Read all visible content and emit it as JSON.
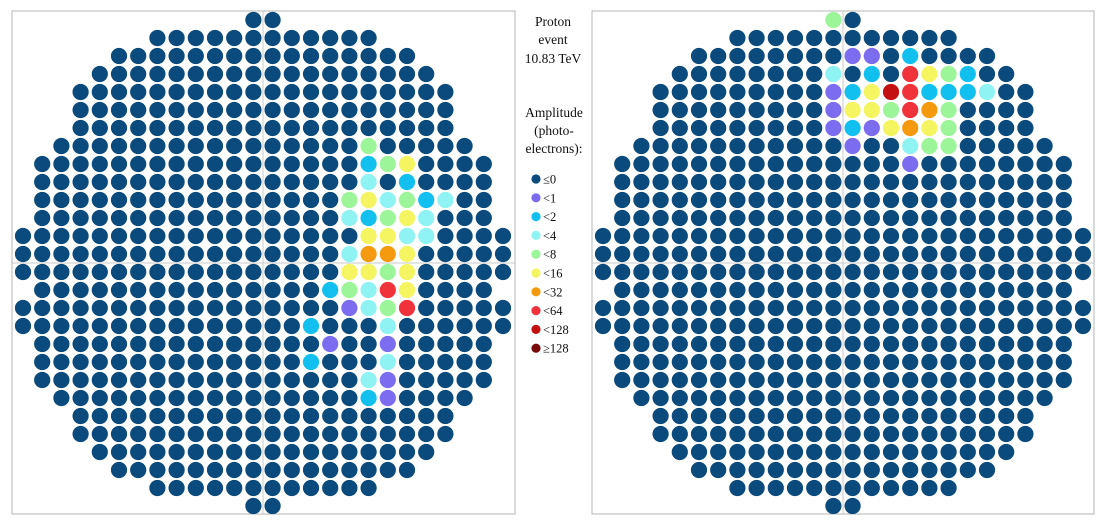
{
  "caption": {
    "line1": "Proton",
    "line2": "event",
    "line3": "10.83  TeV"
  },
  "legend": {
    "title_lines": [
      "Amplitude",
      "(photo-",
      "electrons):"
    ],
    "items": [
      {
        "label": "≤0",
        "color": "#0a4a7c"
      },
      {
        "label": "<1",
        "color": "#7b6cf0"
      },
      {
        "label": "<2",
        "color": "#12c0f0"
      },
      {
        "label": "<4",
        "color": "#8ff3f3"
      },
      {
        "label": "<8",
        "color": "#9cf598"
      },
      {
        "label": "<16",
        "color": "#f5f562"
      },
      {
        "label": "<32",
        "color": "#f59a0e"
      },
      {
        "label": "<64",
        "color": "#f0323a"
      },
      {
        "label": "<128",
        "color": "#c41010"
      },
      {
        "label": "≥128",
        "color": "#7a0a0a"
      }
    ]
  },
  "cameras": [
    {
      "name": "left-camera",
      "hit_pixels": [
        [
          7,
          9,
          "<8"
        ],
        [
          8,
          9,
          "<2"
        ],
        [
          8,
          10,
          "<8"
        ],
        [
          8,
          11,
          "<16"
        ],
        [
          9,
          9,
          "<4"
        ],
        [
          9,
          11,
          "<2"
        ],
        [
          10,
          8,
          "<8"
        ],
        [
          10,
          9,
          "<16"
        ],
        [
          10,
          10,
          "<4"
        ],
        [
          10,
          11,
          "<8"
        ],
        [
          10,
          12,
          "<2"
        ],
        [
          10,
          13,
          "<4"
        ],
        [
          11,
          8,
          "<4"
        ],
        [
          11,
          9,
          "<2"
        ],
        [
          11,
          10,
          "<8"
        ],
        [
          11,
          11,
          "<16"
        ],
        [
          11,
          12,
          "<4"
        ],
        [
          12,
          9,
          "<16"
        ],
        [
          12,
          10,
          "<16"
        ],
        [
          12,
          11,
          "<4"
        ],
        [
          12,
          12,
          "<4"
        ],
        [
          13,
          8,
          "<4"
        ],
        [
          13,
          9,
          "<32"
        ],
        [
          13,
          10,
          "<32"
        ],
        [
          13,
          11,
          "<16"
        ],
        [
          14,
          8,
          "<16"
        ],
        [
          14,
          9,
          "<16"
        ],
        [
          14,
          10,
          "<8"
        ],
        [
          14,
          11,
          "<16"
        ],
        [
          15,
          7,
          "<2"
        ],
        [
          15,
          8,
          "<8"
        ],
        [
          15,
          9,
          "<4"
        ],
        [
          15,
          10,
          "<64"
        ],
        [
          15,
          11,
          "<16"
        ],
        [
          16,
          8,
          "<1"
        ],
        [
          16,
          9,
          "<4"
        ],
        [
          16,
          10,
          "<8"
        ],
        [
          16,
          11,
          "<64"
        ],
        [
          17,
          6,
          "<2"
        ],
        [
          17,
          10,
          "<4"
        ],
        [
          18,
          7,
          "<1"
        ],
        [
          18,
          10,
          "<1"
        ],
        [
          19,
          6,
          "<2"
        ],
        [
          19,
          10,
          "<4"
        ],
        [
          20,
          9,
          "<4"
        ],
        [
          20,
          10,
          "<1"
        ],
        [
          21,
          9,
          "<2"
        ],
        [
          21,
          10,
          "<1"
        ]
      ]
    },
    {
      "name": "right-camera",
      "hit_pixels": [
        [
          0,
          0,
          "<8"
        ],
        [
          2,
          1,
          "<1"
        ],
        [
          2,
          2,
          "<1"
        ],
        [
          2,
          4,
          "<2"
        ],
        [
          3,
          0,
          "<4"
        ],
        [
          3,
          2,
          "<2"
        ],
        [
          3,
          4,
          "<64"
        ],
        [
          3,
          5,
          "<16"
        ],
        [
          3,
          6,
          "<8"
        ],
        [
          3,
          7,
          "<2"
        ],
        [
          4,
          0,
          "<1"
        ],
        [
          4,
          1,
          "<2"
        ],
        [
          4,
          2,
          "<16"
        ],
        [
          4,
          3,
          "<128"
        ],
        [
          4,
          4,
          "<64"
        ],
        [
          4,
          5,
          "<2"
        ],
        [
          4,
          6,
          "<2"
        ],
        [
          4,
          7,
          "<2"
        ],
        [
          4,
          8,
          "<4"
        ],
        [
          5,
          0,
          "<1"
        ],
        [
          5,
          1,
          "<16"
        ],
        [
          5,
          2,
          "<16"
        ],
        [
          5,
          3,
          "<8"
        ],
        [
          5,
          4,
          "<64"
        ],
        [
          5,
          5,
          "<32"
        ],
        [
          5,
          6,
          "<8"
        ],
        [
          6,
          0,
          "<1"
        ],
        [
          6,
          1,
          "<2"
        ],
        [
          6,
          2,
          "<1"
        ],
        [
          6,
          3,
          "<16"
        ],
        [
          6,
          4,
          "<32"
        ],
        [
          6,
          5,
          "<16"
        ],
        [
          6,
          6,
          "<8"
        ],
        [
          7,
          1,
          "<1"
        ],
        [
          7,
          4,
          "<4"
        ],
        [
          7,
          5,
          "<8"
        ],
        [
          7,
          6,
          "<8"
        ],
        [
          8,
          4,
          "<1"
        ]
      ]
    }
  ]
}
